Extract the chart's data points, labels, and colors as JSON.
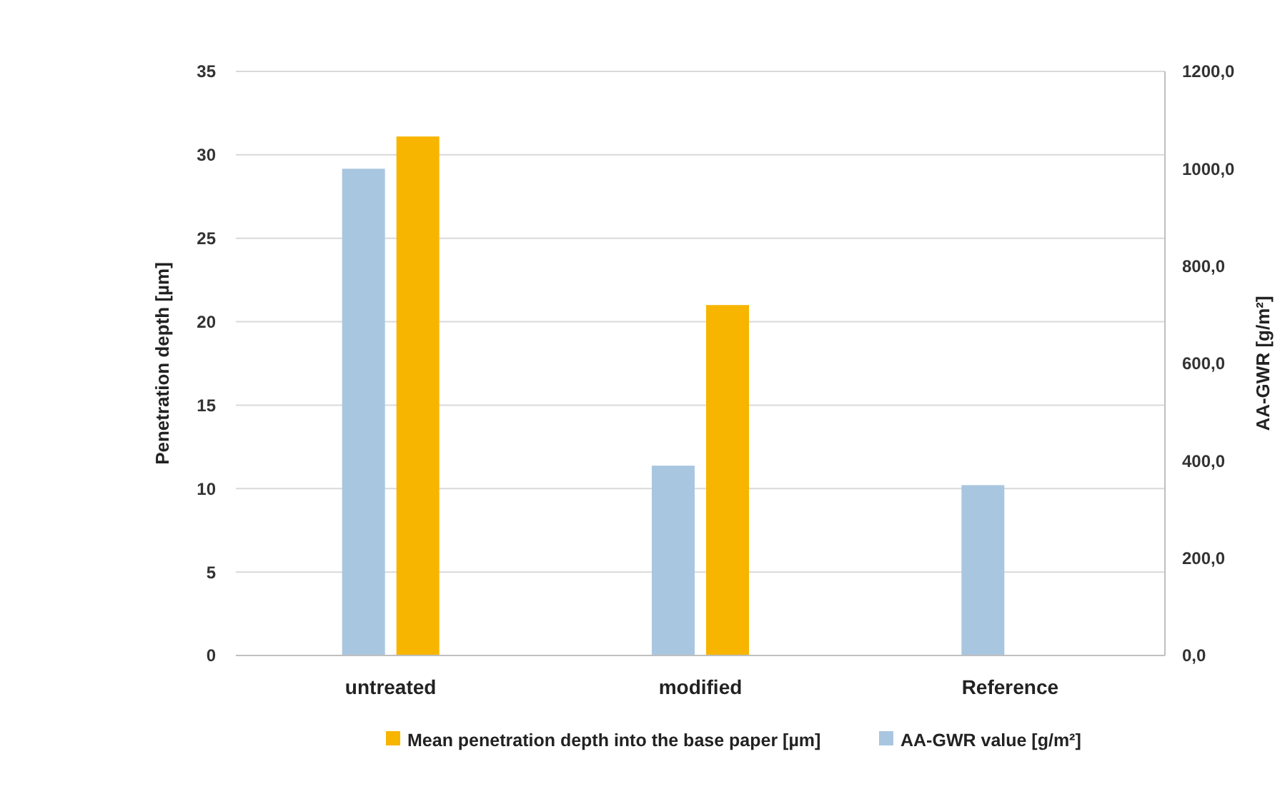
{
  "chart_data": {
    "type": "bar",
    "categories": [
      "untreated",
      "modified",
      "Reference"
    ],
    "ylabel": "Penetration depth [µm]",
    "y2label": "AA-GWR [g/m²]",
    "ylim": [
      0,
      35
    ],
    "yticks": [
      0,
      5,
      10,
      15,
      20,
      25,
      30,
      35
    ],
    "y2lim": [
      0,
      1200
    ],
    "y2ticks": [
      {
        "value": 0,
        "label": "0,0"
      },
      {
        "value": 200,
        "label": "200,0"
      },
      {
        "value": 400,
        "label": "400,0"
      },
      {
        "value": 600,
        "label": "600,0"
      },
      {
        "value": 800,
        "label": "800,0"
      },
      {
        "value": 1000,
        "label": "1000,0"
      },
      {
        "value": 1200,
        "label": "1200,0"
      }
    ],
    "series": [
      {
        "name": "Mean penetration depth into the base paper [µm]",
        "color": "#f7b500",
        "values": [
          31.1,
          21,
          null
        ]
      },
      {
        "name": "AA-GWR value [g/m²]",
        "color": "#a9c6e0",
        "values": [
          1000,
          390,
          350
        ],
        "axis": "y2"
      }
    ],
    "grid": "y",
    "legend": "bottom"
  }
}
